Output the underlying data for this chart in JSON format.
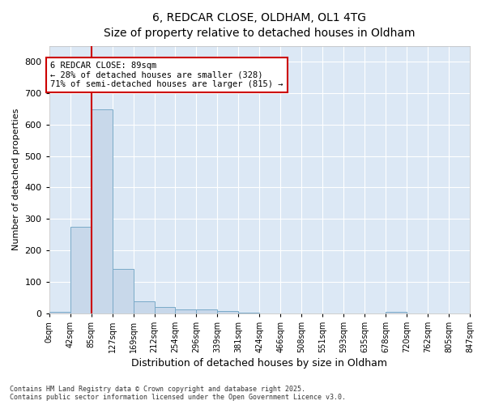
{
  "title": "6, REDCAR CLOSE, OLDHAM, OL1 4TG",
  "subtitle": "Size of property relative to detached houses in Oldham",
  "xlabel": "Distribution of detached houses by size in Oldham",
  "ylabel": "Number of detached properties",
  "bar_color": "#c8d8ea",
  "bar_edge_color": "#7aaac8",
  "background_color": "#dce8f5",
  "grid_color": "#ffffff",
  "fig_background": "#ffffff",
  "bins": [
    "0sqm",
    "42sqm",
    "85sqm",
    "127sqm",
    "169sqm",
    "212sqm",
    "254sqm",
    "296sqm",
    "339sqm",
    "381sqm",
    "424sqm",
    "466sqm",
    "508sqm",
    "551sqm",
    "593sqm",
    "635sqm",
    "678sqm",
    "720sqm",
    "762sqm",
    "805sqm",
    "847sqm"
  ],
  "values": [
    5,
    275,
    648,
    140,
    37,
    20,
    12,
    12,
    7,
    2,
    0,
    0,
    0,
    0,
    0,
    0,
    5,
    0,
    0,
    0
  ],
  "bin_width": 42,
  "property_size": 85,
  "property_label": "6 REDCAR CLOSE: 89sqm",
  "smaller_pct": 28,
  "smaller_count": 328,
  "larger_semi_pct": 71,
  "larger_semi_count": 815,
  "annotation_box_color": "#ffffff",
  "annotation_box_edge": "#cc0000",
  "vline_color": "#cc0000",
  "ylim": [
    0,
    850
  ],
  "yticks": [
    0,
    100,
    200,
    300,
    400,
    500,
    600,
    700,
    800
  ],
  "footer": "Contains HM Land Registry data © Crown copyright and database right 2025.\nContains public sector information licensed under the Open Government Licence v3.0."
}
